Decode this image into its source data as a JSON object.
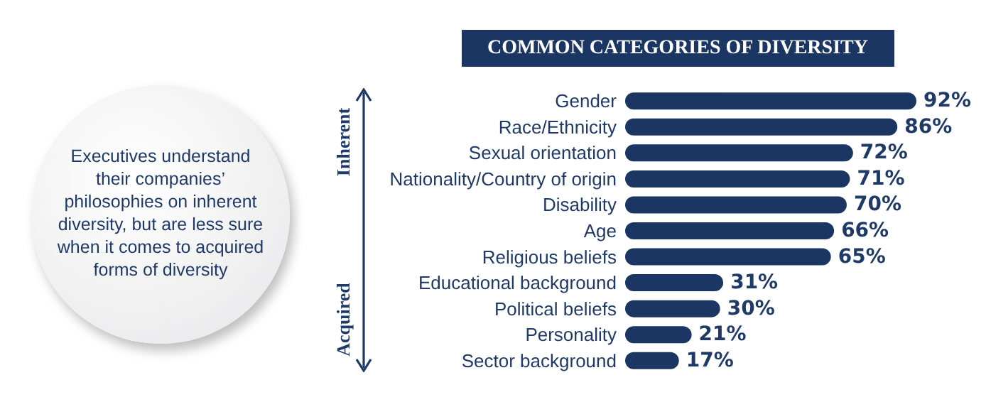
{
  "chart_data": {
    "type": "bar",
    "orientation": "horizontal",
    "title": "COMMON CATEGORIES OF DIVERSITY",
    "categories": [
      "Gender",
      "Race/Ethnicity",
      "Sexual orientation",
      "Nationality/Country of origin",
      "Disability",
      "Age",
      "Religious beliefs",
      "Educational background",
      "Political beliefs",
      "Personality",
      "Sector background"
    ],
    "values": [
      92,
      86,
      72,
      71,
      70,
      66,
      65,
      31,
      30,
      21,
      17
    ],
    "value_labels": [
      "92%",
      "86%",
      "72%",
      "71%",
      "70%",
      "66%",
      "65%",
      "31%",
      "30%",
      "21%",
      "17%"
    ],
    "color": "#1c3664",
    "tick_labels": "y",
    "annotations": [
      "Executives understand their companies’ philosophies on inherent diversity, but are less sure when it comes to acquired forms of diversity",
      "Inherent",
      "Acquired"
    ]
  }
}
